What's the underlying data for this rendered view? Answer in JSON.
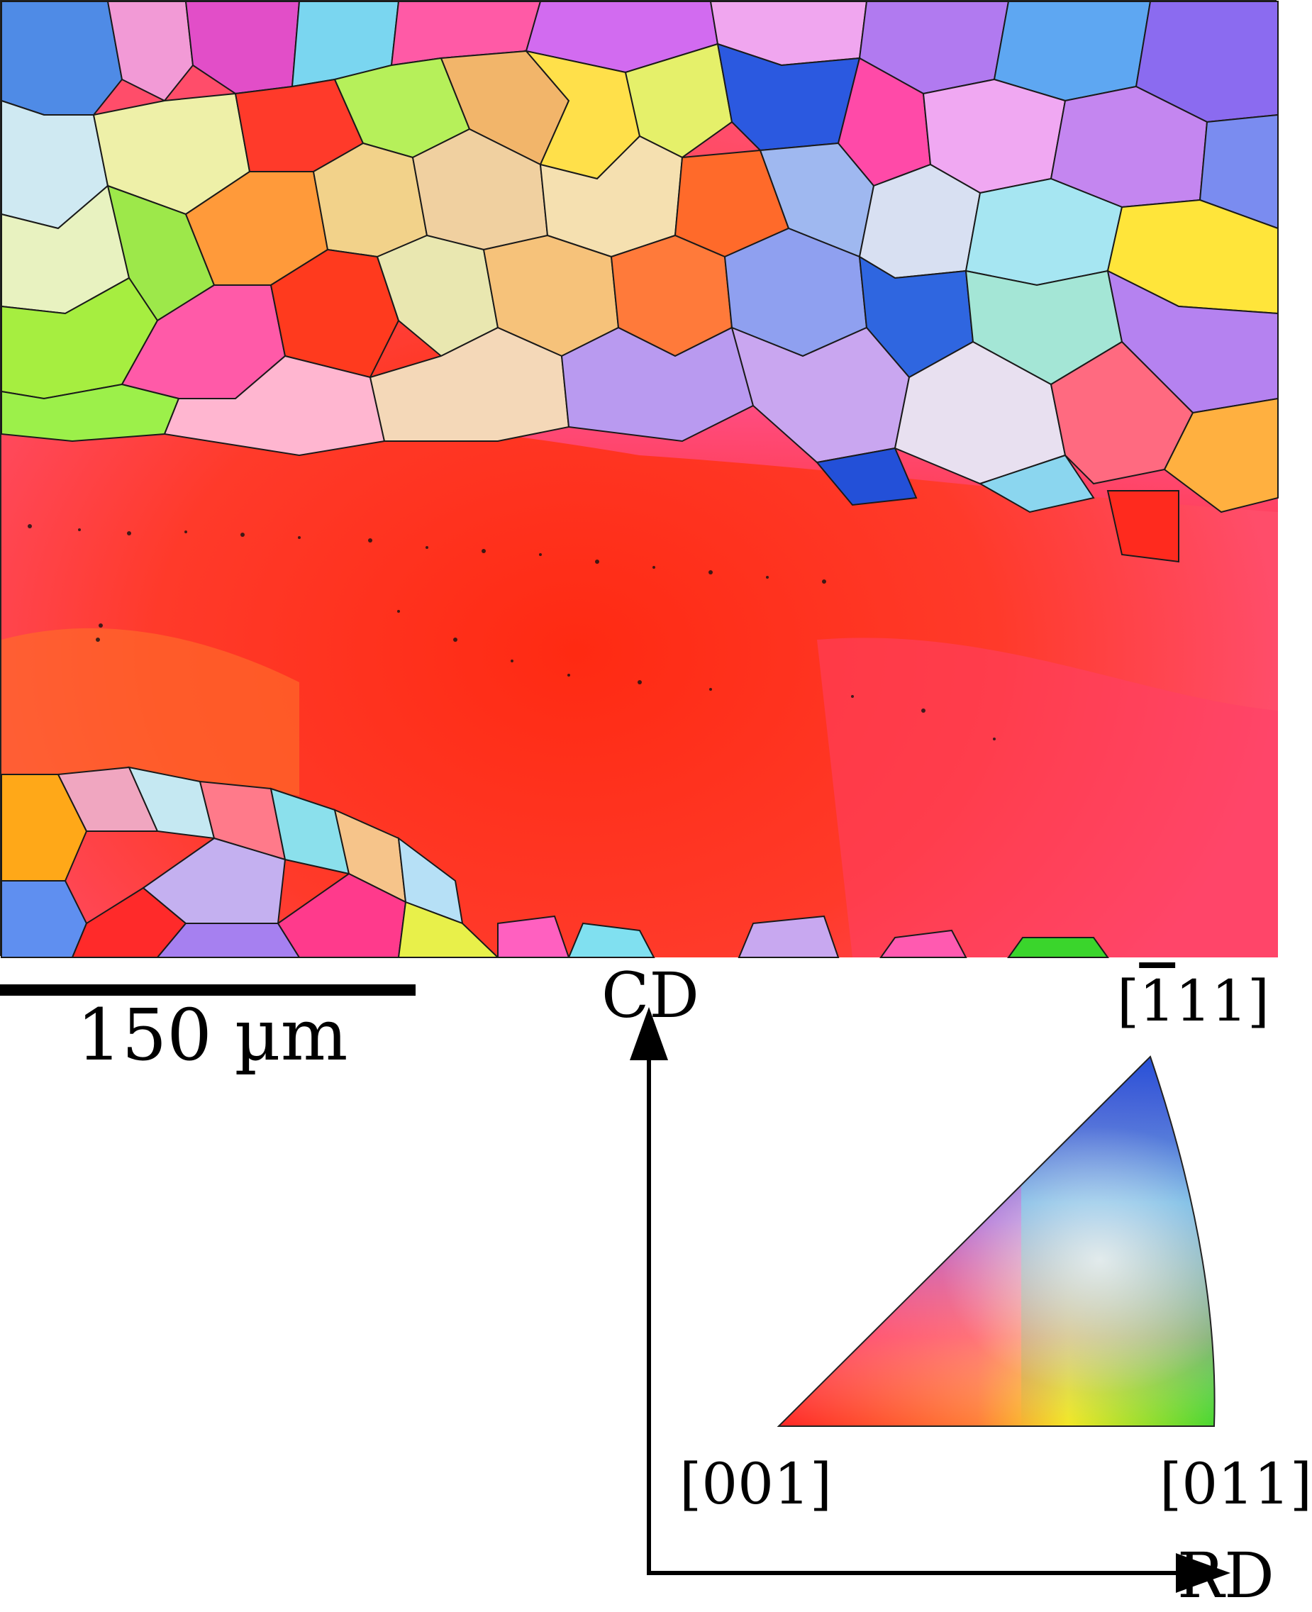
{
  "scale_bar": {
    "label": "150 µm"
  },
  "legend": {
    "axis_vertical": "CD",
    "axis_horizontal": "RD",
    "poles": {
      "p001": "[001]",
      "p011": "[011]",
      "p111_prefix": "[",
      "p111_bar": "1",
      "p111_suffix": "11]"
    }
  },
  "colors": {
    "pole_001": "#ff2a1e",
    "pole_011": "#3ad52c",
    "pole_111": "#1f4fd8",
    "matrix_main": "#ff3a22",
    "matrix_magenta": "#ff5aa0",
    "matrix_orange": "#ff7a18"
  }
}
